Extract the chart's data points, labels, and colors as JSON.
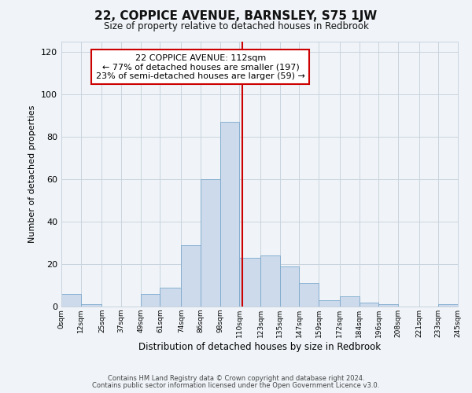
{
  "title": "22, COPPICE AVENUE, BARNSLEY, S75 1JW",
  "subtitle": "Size of property relative to detached houses in Redbrook",
  "xlabel": "Distribution of detached houses by size in Redbrook",
  "ylabel": "Number of detached properties",
  "footnote1": "Contains HM Land Registry data © Crown copyright and database right 2024.",
  "footnote2": "Contains public sector information licensed under the Open Government Licence v3.0.",
  "bar_color": "#ccdaeb",
  "bar_edge_color": "#7aa8cc",
  "vline_x": 112,
  "vline_color": "#cc0000",
  "annotation_title": "22 COPPICE AVENUE: 112sqm",
  "annotation_line1": "← 77% of detached houses are smaller (197)",
  "annotation_line2": "23% of semi-detached houses are larger (59) →",
  "annotation_box_color": "#cc0000",
  "annotation_bg": "#ffffff",
  "bin_edges": [
    0,
    12,
    25,
    37,
    49,
    61,
    74,
    86,
    98,
    110,
    123,
    135,
    147,
    159,
    172,
    184,
    196,
    208,
    221,
    233,
    245
  ],
  "bin_heights": [
    6,
    1,
    0,
    0,
    6,
    9,
    29,
    60,
    87,
    23,
    24,
    19,
    11,
    3,
    5,
    2,
    1,
    0,
    0,
    1
  ],
  "tick_labels": [
    "0sqm",
    "12sqm",
    "25sqm",
    "37sqm",
    "49sqm",
    "61sqm",
    "74sqm",
    "86sqm",
    "98sqm",
    "110sqm",
    "123sqm",
    "135sqm",
    "147sqm",
    "159sqm",
    "172sqm",
    "184sqm",
    "196sqm",
    "208sqm",
    "221sqm",
    "233sqm",
    "245sqm"
  ],
  "ylim": [
    0,
    125
  ],
  "yticks": [
    0,
    20,
    40,
    60,
    80,
    100,
    120
  ],
  "background_color": "#f0f4f8",
  "grid_color": "#c8d4de"
}
